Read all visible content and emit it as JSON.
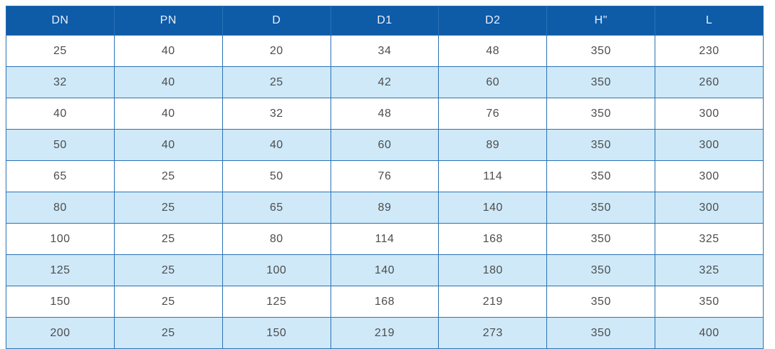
{
  "table": {
    "columns": [
      "DN",
      "PN",
      "D",
      "D1",
      "D2",
      "H\"",
      "L"
    ],
    "rows": [
      [
        "25",
        "40",
        "20",
        "34",
        "48",
        "350",
        "230"
      ],
      [
        "32",
        "40",
        "25",
        "42",
        "60",
        "350",
        "260"
      ],
      [
        "40",
        "40",
        "32",
        "48",
        "76",
        "350",
        "300"
      ],
      [
        "50",
        "40",
        "40",
        "60",
        "89",
        "350",
        "300"
      ],
      [
        "65",
        "25",
        "50",
        "76",
        "114",
        "350",
        "300"
      ],
      [
        "80",
        "25",
        "65",
        "89",
        "140",
        "350",
        "300"
      ],
      [
        "100",
        "25",
        "80",
        "114",
        "168",
        "350",
        "325"
      ],
      [
        "125",
        "25",
        "100",
        "140",
        "180",
        "350",
        "325"
      ],
      [
        "150",
        "25",
        "125",
        "168",
        "219",
        "350",
        "350"
      ],
      [
        "200",
        "25",
        "150",
        "219",
        "273",
        "350",
        "400"
      ]
    ]
  },
  "colors": {
    "header_bg": "#0e5ba8",
    "header_text": "#e8f1fa",
    "row_bg": "#ffffff",
    "row_alt_bg": "#cfe9f8",
    "border": "#2a72b5",
    "cell_text": "#4d4d4d",
    "page_bg": "#ffffff"
  }
}
